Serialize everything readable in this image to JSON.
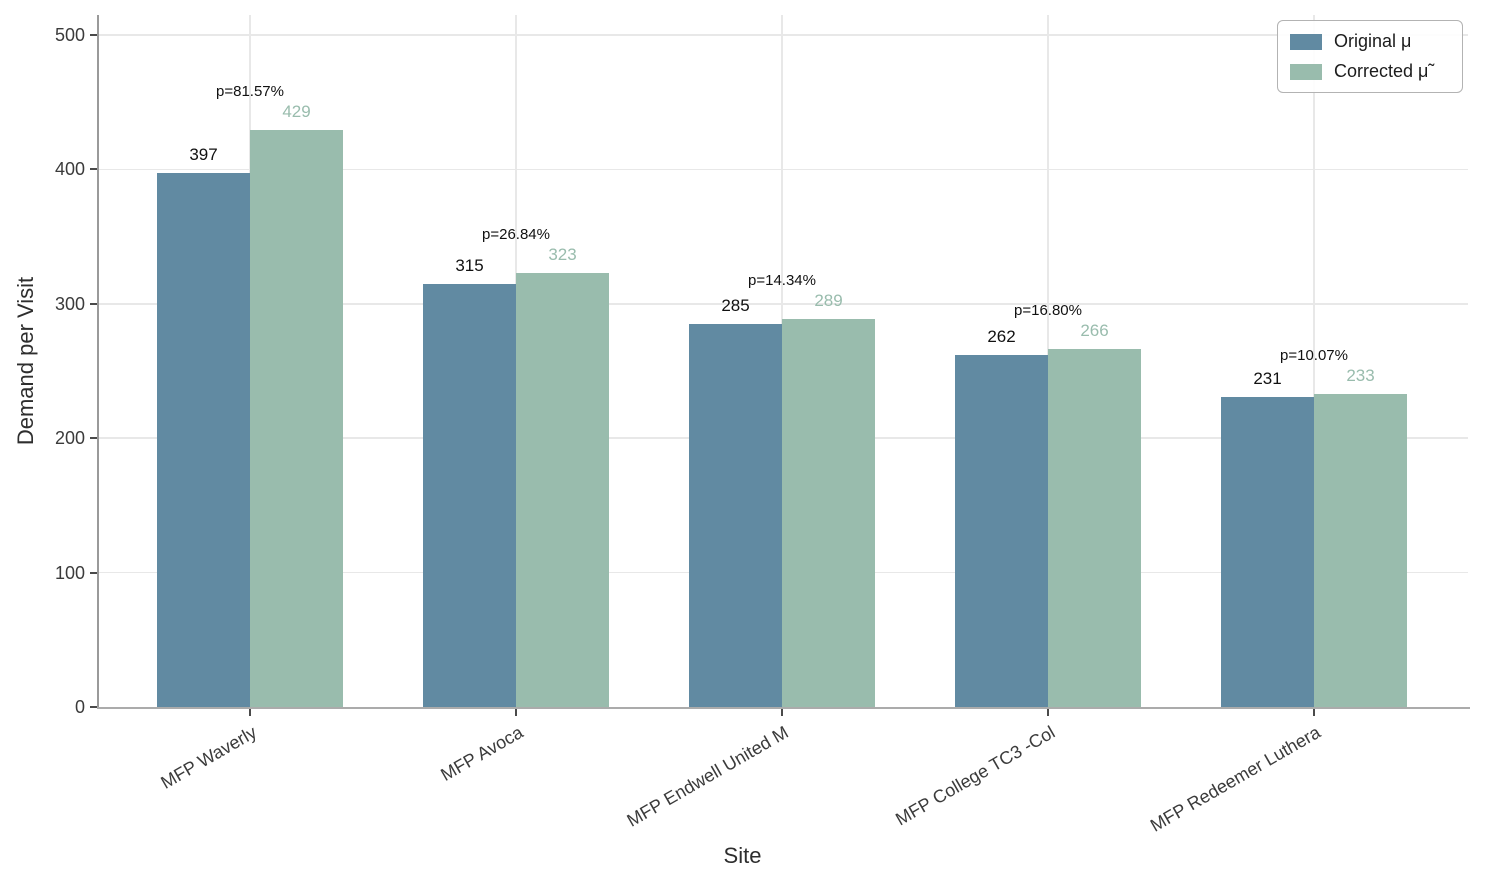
{
  "chart_data": {
    "type": "bar",
    "title": "",
    "xlabel": "Site",
    "ylabel": "Demand per Visit",
    "categories": [
      "MFP Waverly",
      "MFP Avoca",
      "MFP Endwell United M",
      "MFP College TC3 -Col",
      "MFP Redeemer Luthera"
    ],
    "series": [
      {
        "name": "Original μ",
        "color": "#618AA2",
        "label_color": "#111111",
        "values": [
          397,
          315,
          285,
          262,
          231
        ]
      },
      {
        "name": "Corrected μ̃",
        "color": "#99BCAD",
        "label_color": "#99BCAD",
        "values": [
          429,
          323,
          289,
          266,
          233
        ]
      }
    ],
    "annotations": [
      "p=81.57%",
      "p=26.84%",
      "p=14.34%",
      "p=16.80%",
      "p=10.07%"
    ],
    "y_ticks": [
      0,
      100,
      200,
      300,
      400,
      500
    ],
    "ylim": [
      0,
      519
    ],
    "grid": true,
    "legend_position": "upper right"
  }
}
